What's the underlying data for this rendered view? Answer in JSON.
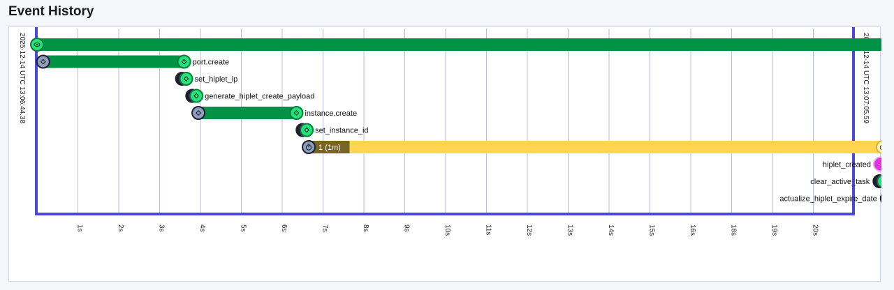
{
  "page": {
    "title": "Event History"
  },
  "timeline": {
    "start_label": "2025-12-14 UTC 13:06:44.38",
    "end_label": "2025-12-14 UTC 13:07:05.59",
    "ticks": [
      "1s",
      "2s",
      "3s",
      "4s",
      "5s",
      "6s",
      "7s",
      "8s",
      "9s",
      "10s",
      "11s",
      "12s",
      "13s",
      "14s",
      "15s",
      "16s",
      "18s",
      "19s",
      "20s"
    ],
    "colors": {
      "activity_bar": "#009245",
      "timer_bar": "#ffd54f",
      "timer_fired": "#7a6424",
      "frame": "#4a4ad6",
      "node_green": "#27e27a",
      "node_grey": "#8fa0bd",
      "node_magenta": "#e032e0",
      "gridline": "#b9bedc"
    },
    "events": [
      {
        "name": "workflow",
        "label": "",
        "start": 0.0,
        "end": 20.9,
        "kind": "workflow",
        "start_icon": "eye-icon",
        "end_icon": "eye-icon"
      },
      {
        "name": "port-create",
        "label": "port.create",
        "start": 0.15,
        "end": 3.6,
        "kind": "activity",
        "start_icon": "diamond-icon",
        "end_icon": "diamond-icon"
      },
      {
        "name": "set-hiplet-ip",
        "label": "set_hiplet_ip",
        "start": 3.55,
        "end": 3.65,
        "kind": "local",
        "start_icon": "diamond-icon",
        "end_icon": "diamond-icon"
      },
      {
        "name": "generate-hiplet-create-payload",
        "label": "generate_hiplet_create_payload",
        "start": 3.8,
        "end": 3.9,
        "kind": "local",
        "start_icon": "diamond-icon",
        "end_icon": "diamond-icon"
      },
      {
        "name": "instance-create",
        "label": "instance.create",
        "start": 3.95,
        "end": 6.35,
        "kind": "activity",
        "start_icon": "diamond-icon",
        "end_icon": "diamond-icon"
      },
      {
        "name": "set-instance-id",
        "label": "set_instance_id",
        "start": 6.5,
        "end": 6.6,
        "kind": "local",
        "start_icon": "diamond-icon",
        "end_icon": "diamond-icon"
      },
      {
        "name": "timer",
        "label": "1 (1m)",
        "start": 6.65,
        "fired": 7.65,
        "end": 20.7,
        "kind": "timer",
        "start_icon": "stopwatch-icon",
        "end_icon": "stopwatch-icon"
      },
      {
        "name": "hiplet-created",
        "label": "hiplet_created",
        "start": 20.65,
        "end": 20.65,
        "kind": "signal",
        "start_icon": "signal-icon",
        "end_icon": "signal-icon"
      },
      {
        "name": "clear-active-task",
        "label": "clear_active_task",
        "start": 20.62,
        "end": 20.72,
        "kind": "local",
        "start_icon": "diamond-icon",
        "end_icon": "diamond-icon"
      },
      {
        "name": "actualize-hiplet-expire-date",
        "label": "actualize_hiplet_expire_date",
        "start": 20.8,
        "end": 20.9,
        "kind": "local",
        "start_icon": "diamond-icon",
        "end_icon": "diamond-icon"
      }
    ]
  }
}
